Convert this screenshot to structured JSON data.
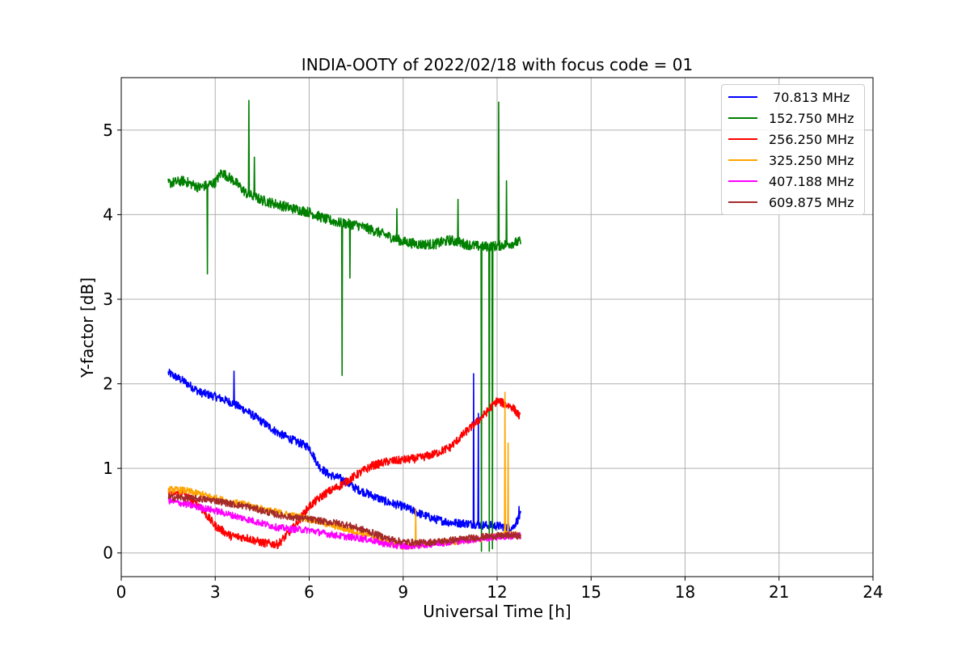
{
  "chart_data": {
    "type": "line",
    "title": "INDIA-OOTY of 2022/02/18 with focus code = 01",
    "xlabel": "Universal Time [h]",
    "ylabel": "Y-factor [dB]",
    "xlim": [
      0,
      24
    ],
    "ylim": [
      -0.28,
      5.62
    ],
    "xticks": [
      0,
      3,
      6,
      9,
      12,
      15,
      18,
      21,
      24
    ],
    "yticks": [
      0,
      1,
      2,
      3,
      4,
      5
    ],
    "grid": true,
    "legend_position": "top-right",
    "series": [
      {
        "name": " 70.813 MHz",
        "color": "#0000ff",
        "noise": 0.05,
        "x": [
          1.5,
          2.0,
          2.5,
          3.0,
          3.5,
          4.0,
          4.5,
          5.0,
          5.5,
          6.0,
          6.3,
          6.6,
          7.0,
          7.5,
          8.0,
          8.5,
          9.0,
          9.5,
          10.0,
          10.5,
          11.0,
          11.5,
          12.0,
          12.5,
          12.75
        ],
        "y": [
          2.13,
          2.03,
          1.9,
          1.85,
          1.78,
          1.68,
          1.55,
          1.42,
          1.33,
          1.25,
          1.03,
          0.93,
          0.88,
          0.76,
          0.68,
          0.6,
          0.55,
          0.47,
          0.4,
          0.36,
          0.35,
          0.33,
          0.32,
          0.3,
          0.45
        ],
        "spikes": [
          [
            3.6,
            2.15
          ],
          [
            11.25,
            2.12
          ],
          [
            11.4,
            1.65
          ],
          [
            12.7,
            0.55
          ]
        ]
      },
      {
        "name": "152.750 MHz",
        "color": "#008000",
        "noise": 0.06,
        "x": [
          1.5,
          2.0,
          2.5,
          3.0,
          3.2,
          3.6,
          4.0,
          4.5,
          5.0,
          5.5,
          6.0,
          6.5,
          7.0,
          7.5,
          8.0,
          8.5,
          9.0,
          9.5,
          10.0,
          10.5,
          11.0,
          11.5,
          12.0,
          12.75
        ],
        "y": [
          4.37,
          4.4,
          4.32,
          4.38,
          4.5,
          4.4,
          4.25,
          4.17,
          4.12,
          4.07,
          4.03,
          3.95,
          3.9,
          3.88,
          3.82,
          3.75,
          3.68,
          3.65,
          3.65,
          3.7,
          3.65,
          3.62,
          3.63,
          3.68
        ],
        "spikes": [
          [
            2.75,
            3.3
          ],
          [
            4.08,
            5.35
          ],
          [
            4.25,
            4.68
          ],
          [
            7.05,
            2.1
          ],
          [
            7.3,
            3.25
          ],
          [
            8.8,
            4.07
          ],
          [
            10.75,
            4.18
          ],
          [
            11.5,
            0.02
          ],
          [
            11.75,
            0.02
          ],
          [
            11.85,
            0.05
          ],
          [
            12.05,
            5.33
          ],
          [
            12.3,
            4.4
          ]
        ]
      },
      {
        "name": "256.250 MHz",
        "color": "#ff0000",
        "noise": 0.05,
        "x": [
          1.5,
          2.0,
          2.5,
          3.0,
          3.5,
          4.0,
          4.5,
          5.0,
          5.5,
          6.0,
          6.5,
          7.0,
          7.5,
          8.0,
          8.5,
          9.0,
          9.5,
          10.0,
          10.5,
          11.0,
          11.5,
          12.0,
          12.5,
          12.75
        ],
        "y": [
          0.72,
          0.7,
          0.55,
          0.32,
          0.2,
          0.18,
          0.12,
          0.1,
          0.3,
          0.55,
          0.7,
          0.8,
          0.92,
          1.03,
          1.08,
          1.1,
          1.12,
          1.17,
          1.25,
          1.43,
          1.6,
          1.8,
          1.72,
          1.6
        ],
        "spikes": []
      },
      {
        "name": "325.250 MHz",
        "color": "#ffa500",
        "noise": 0.04,
        "x": [
          1.5,
          2.0,
          2.5,
          3.0,
          3.5,
          4.0,
          4.5,
          5.0,
          5.5,
          6.0,
          6.5,
          7.0,
          7.5,
          8.0,
          8.5,
          9.0,
          9.5,
          10.0,
          10.5,
          11.0,
          11.5,
          12.0,
          12.5,
          12.75
        ],
        "y": [
          0.75,
          0.74,
          0.7,
          0.65,
          0.6,
          0.57,
          0.52,
          0.48,
          0.44,
          0.4,
          0.35,
          0.3,
          0.25,
          0.2,
          0.12,
          0.08,
          0.1,
          0.12,
          0.13,
          0.15,
          0.17,
          0.2,
          0.22,
          0.2
        ],
        "spikes": [
          [
            9.4,
            0.52
          ],
          [
            12.25,
            1.9
          ],
          [
            12.35,
            1.3
          ]
        ]
      },
      {
        "name": "407.188 MHz",
        "color": "#ff00ff",
        "noise": 0.04,
        "x": [
          1.5,
          2.0,
          2.5,
          3.0,
          3.5,
          4.0,
          4.5,
          5.0,
          5.5,
          6.0,
          6.5,
          7.0,
          7.5,
          8.0,
          8.5,
          9.0,
          9.5,
          10.0,
          10.5,
          11.0,
          11.5,
          12.0,
          12.5,
          12.75
        ],
        "y": [
          0.62,
          0.58,
          0.54,
          0.5,
          0.45,
          0.4,
          0.35,
          0.3,
          0.28,
          0.27,
          0.23,
          0.2,
          0.18,
          0.15,
          0.1,
          0.08,
          0.09,
          0.11,
          0.13,
          0.15,
          0.17,
          0.19,
          0.2,
          0.2
        ],
        "spikes": []
      },
      {
        "name": "609.875 MHz",
        "color": "#a52a2a",
        "noise": 0.04,
        "x": [
          1.5,
          2.0,
          2.5,
          3.0,
          3.5,
          4.0,
          4.5,
          5.0,
          5.5,
          6.0,
          6.5,
          7.0,
          7.5,
          8.0,
          8.5,
          9.0,
          9.5,
          10.0,
          10.5,
          11.0,
          11.5,
          12.0,
          12.5,
          12.75
        ],
        "y": [
          0.66,
          0.65,
          0.64,
          0.62,
          0.58,
          0.55,
          0.5,
          0.45,
          0.42,
          0.4,
          0.37,
          0.35,
          0.3,
          0.24,
          0.17,
          0.13,
          0.12,
          0.13,
          0.15,
          0.17,
          0.19,
          0.2,
          0.21,
          0.2
        ],
        "spikes": []
      }
    ]
  }
}
